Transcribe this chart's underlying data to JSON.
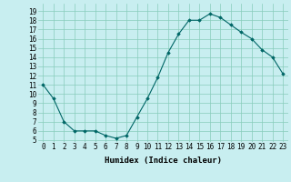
{
  "x": [
    0,
    1,
    2,
    3,
    4,
    5,
    6,
    7,
    8,
    9,
    10,
    11,
    12,
    13,
    14,
    15,
    16,
    17,
    18,
    19,
    20,
    21,
    22,
    23
  ],
  "y": [
    11,
    9.5,
    7.0,
    6.0,
    6.0,
    6.0,
    5.5,
    5.2,
    5.5,
    7.5,
    9.5,
    11.8,
    14.5,
    16.5,
    18.0,
    18.0,
    18.7,
    18.3,
    17.5,
    16.7,
    16.0,
    14.8,
    14.0,
    12.2
  ],
  "xlabel": "Humidex (Indice chaleur)",
  "xlim": [
    -0.5,
    23.5
  ],
  "ylim": [
    4.8,
    19.8
  ],
  "yticks": [
    5,
    6,
    7,
    8,
    9,
    10,
    11,
    12,
    13,
    14,
    15,
    16,
    17,
    18,
    19
  ],
  "xticks": [
    0,
    1,
    2,
    3,
    4,
    5,
    6,
    7,
    8,
    9,
    10,
    11,
    12,
    13,
    14,
    15,
    16,
    17,
    18,
    19,
    20,
    21,
    22,
    23
  ],
  "xtick_labels": [
    "0",
    "1",
    "2",
    "3",
    "4",
    "5",
    "6",
    "7",
    "8",
    "9",
    "10",
    "11",
    "12",
    "13",
    "14",
    "15",
    "16",
    "17",
    "18",
    "19",
    "20",
    "21",
    "22",
    "23"
  ],
  "line_color": "#006666",
  "marker": "D",
  "marker_size": 1.8,
  "bg_color": "#c8eef0",
  "grid_color": "#88ccbb",
  "label_fontsize": 6.5,
  "tick_fontsize": 5.5
}
